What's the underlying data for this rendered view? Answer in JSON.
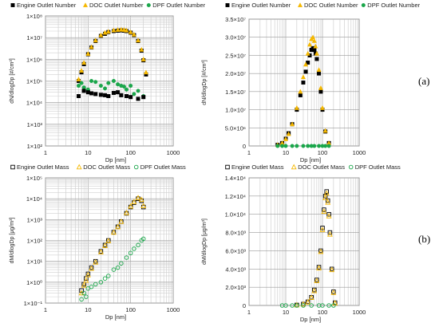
{
  "panel_labels": [
    "(a)",
    "(b)"
  ],
  "colors": {
    "engine": "#000000",
    "doc": "#f5b800",
    "dpf": "#1aa64a"
  },
  "chart_data": [
    {
      "type": "scatter",
      "xscale": "log",
      "yscale": "log",
      "xlabel": "Dp [nm]",
      "ylabel": "dN/dlogDp [#/cm³]",
      "xlim": [
        1,
        1000
      ],
      "ylim": [
        100,
        100000000
      ],
      "xticks": [
        "1",
        "10",
        "100",
        "1000"
      ],
      "yticks": [
        "1×10²",
        "1×10³",
        "1×10⁴",
        "1×10⁵",
        "1×10⁶",
        "1×10⁷",
        "1×10⁸"
      ],
      "legend": [
        "Engine Outlet Number",
        "DOC Outlet Number",
        "DPF Outlet Number"
      ],
      "series": [
        {
          "name": "Engine Outlet Number",
          "marker": "filled-square",
          "x": [
            6,
            7,
            8,
            10,
            12,
            15,
            20,
            25,
            30,
            40,
            50,
            60,
            70,
            80,
            100,
            120,
            150,
            180,
            200,
            230
          ],
          "y": [
            100000,
            250000,
            600000,
            1700000,
            3500000,
            7000000,
            12000000,
            15000000,
            18000000,
            20000000,
            21000000,
            21500000,
            21000000,
            20000000,
            17000000,
            13000000,
            7000000,
            2500000,
            900000,
            200000
          ]
        },
        {
          "name": "DOC Outlet Number",
          "marker": "filled-triangle",
          "x": [
            6,
            7,
            8,
            10,
            12,
            15,
            20,
            25,
            30,
            40,
            50,
            60,
            70,
            80,
            100,
            120,
            150,
            180,
            200,
            230
          ],
          "y": [
            120000,
            300000,
            700000,
            1800000,
            3700000,
            7500000,
            13000000,
            17000000,
            19000000,
            22000000,
            23000000,
            23500000,
            23000000,
            21500000,
            18000000,
            14000000,
            7500000,
            2800000,
            1000000,
            250000
          ]
        },
        {
          "name": "DPF Outlet Number",
          "marker": "filled-circle",
          "x": [
            6,
            7,
            8,
            10,
            12,
            15,
            20,
            25,
            30,
            40,
            50,
            60,
            70,
            80,
            100,
            120,
            150,
            200
          ],
          "y": [
            60000,
            80000,
            50000,
            40000,
            100000,
            90000,
            60000,
            45000,
            80000,
            100000,
            70000,
            60000,
            55000,
            40000,
            60000,
            25000,
            35000,
            20000
          ]
        },
        {
          "name": "Engine Outlet Number (tail)",
          "marker": "filled-square",
          "x": [
            6,
            8,
            10,
            12,
            15,
            20,
            25,
            30,
            40,
            50,
            60,
            80,
            100,
            150,
            200
          ],
          "y": [
            20000,
            35000,
            30000,
            27000,
            25000,
            23000,
            22000,
            20000,
            28000,
            30000,
            22000,
            20000,
            18000,
            15000,
            18000
          ]
        }
      ]
    },
    {
      "type": "scatter",
      "xscale": "log",
      "yscale": "linear",
      "xlabel": "Dp [nm]",
      "ylabel": "dN/dlogDp [#/cm³]",
      "xlim": [
        1,
        1000
      ],
      "ylim": [
        0,
        35000000
      ],
      "xticks": [
        "1",
        "10",
        "100",
        "1000"
      ],
      "yticks": [
        "0",
        "5.0×10⁶",
        "1.0×10⁷",
        "1.5×10⁷",
        "2.0×10⁷",
        "2.5×10⁷",
        "3.0×10⁷",
        "3.5×10⁷"
      ],
      "legend": [
        "Engine Outlet Number",
        "DOC Outlet Number",
        "DPF Outlet Number"
      ],
      "series": [
        {
          "name": "Engine Outlet Number",
          "marker": "filled-square",
          "x": [
            6,
            8,
            10,
            12,
            15,
            20,
            25,
            30,
            35,
            40,
            45,
            50,
            55,
            60,
            65,
            70,
            80,
            90,
            100,
            120,
            150
          ],
          "y": [
            300000,
            800000,
            2000000,
            3500000,
            6000000,
            10000000,
            14000000,
            17500000,
            20500000,
            23000000,
            25000000,
            26500000,
            27000000,
            26500000,
            25500000,
            24000000,
            20000000,
            15000000,
            10000000,
            4000000,
            800000
          ]
        },
        {
          "name": "DOC Outlet Number",
          "marker": "filled-triangle",
          "x": [
            6,
            8,
            10,
            12,
            15,
            20,
            25,
            30,
            35,
            40,
            45,
            50,
            55,
            60,
            65,
            70,
            80,
            90,
            100,
            120,
            150
          ],
          "y": [
            300000,
            800000,
            1900000,
            3300000,
            6000000,
            10500000,
            15000000,
            19000000,
            22500000,
            25500000,
            28000000,
            29500000,
            30000000,
            29000000,
            27500000,
            25500000,
            21000000,
            16000000,
            10500000,
            4200000,
            800000
          ]
        },
        {
          "name": "DPF Outlet Number",
          "marker": "filled-circle",
          "x": [
            6,
            8,
            10,
            15,
            20,
            30,
            40,
            50,
            60,
            80,
            100,
            120,
            150
          ],
          "y": [
            0,
            0,
            0,
            0,
            0,
            0,
            0,
            0,
            0,
            0,
            0,
            0,
            0
          ]
        }
      ]
    },
    {
      "type": "scatter",
      "xscale": "log",
      "yscale": "log",
      "xlabel": "Dp [nm]",
      "ylabel": "dM/dlogDp [μg/m³]",
      "xlim": [
        1,
        1000
      ],
      "ylim": [
        0.1,
        100000
      ],
      "xticks": [
        "1",
        "10",
        "100",
        "1000"
      ],
      "yticks": [
        "1×10⁻¹",
        "1×10⁰",
        "1×10¹",
        "1×10²",
        "1×10³",
        "1×10⁴",
        "1×10⁵"
      ],
      "legend": [
        "Engine Outlet Mass",
        "DOC Outlet Mass",
        "DPF Outlet Mass"
      ],
      "series": [
        {
          "name": "Engine Outlet Mass",
          "marker": "open-square",
          "x": [
            7,
            8,
            9,
            10,
            12,
            15,
            20,
            25,
            30,
            40,
            50,
            60,
            80,
            100,
            120,
            150,
            180,
            200
          ],
          "y": [
            0.4,
            0.8,
            1.5,
            2.5,
            5,
            10,
            30,
            60,
            100,
            250,
            450,
            800,
            2000,
            4000,
            6500,
            10000,
            8000,
            4000
          ]
        },
        {
          "name": "DOC Outlet Mass",
          "marker": "open-triangle",
          "x": [
            7,
            8,
            9,
            10,
            12,
            15,
            20,
            25,
            30,
            40,
            50,
            60,
            80,
            100,
            120,
            150,
            180,
            200
          ],
          "y": [
            0.3,
            0.7,
            1.2,
            2.2,
            4.5,
            9,
            28,
            55,
            95,
            240,
            440,
            800,
            2100,
            4300,
            7000,
            11000,
            9000,
            4500
          ]
        },
        {
          "name": "DPF Outlet Mass",
          "marker": "open-circle",
          "x": [
            7,
            8,
            9,
            10,
            12,
            15,
            20,
            25,
            30,
            40,
            50,
            60,
            80,
            100,
            120,
            150,
            180,
            200
          ],
          "y": [
            0.15,
            0.3,
            0.2,
            0.5,
            0.6,
            0.8,
            1,
            1.5,
            2,
            4,
            5,
            8,
            15,
            25,
            40,
            60,
            100,
            120
          ]
        }
      ]
    },
    {
      "type": "scatter",
      "xscale": "log",
      "yscale": "linear",
      "xlabel": "Dp [nm]",
      "ylabel": "dM/dlogDp [μg/m³]",
      "xlim": [
        1,
        1000
      ],
      "ylim": [
        0,
        14000
      ],
      "xticks": [
        "1",
        "10",
        "100",
        "1000"
      ],
      "yticks": [
        "0",
        "2.0×10³",
        "4.0×10³",
        "6.0×10³",
        "8.0×10³",
        "1.0×10⁴",
        "1.2×10⁴",
        "1.4×10⁴"
      ],
      "legend": [
        "Engine Outlet Mass",
        "DOC Outlet Mass",
        "DPF Outlet Mass"
      ],
      "series": [
        {
          "name": "Engine Outlet Mass",
          "marker": "open-square",
          "x": [
            20,
            30,
            40,
            50,
            60,
            70,
            80,
            90,
            100,
            110,
            120,
            130,
            140,
            150,
            160,
            180,
            200,
            220
          ],
          "y": [
            50,
            150,
            400,
            900,
            1700,
            2800,
            4200,
            6000,
            8500,
            10500,
            12000,
            12500,
            11500,
            10000,
            8000,
            4000,
            1500,
            300
          ]
        },
        {
          "name": "DOC Outlet Mass",
          "marker": "open-triangle",
          "x": [
            20,
            30,
            40,
            50,
            60,
            70,
            80,
            90,
            100,
            110,
            120,
            130,
            140,
            150,
            160,
            180,
            200,
            220
          ],
          "y": [
            40,
            130,
            350,
            850,
            1600,
            2700,
            4100,
            5900,
            8300,
            10300,
            11800,
            12300,
            11300,
            9800,
            7800,
            3900,
            1400,
            250
          ]
        },
        {
          "name": "DPF Outlet Mass",
          "marker": "open-circle",
          "x": [
            8,
            10,
            15,
            20,
            30,
            50,
            80,
            100,
            150,
            200
          ],
          "y": [
            0,
            0,
            0,
            0,
            0,
            0,
            0,
            0,
            0,
            0
          ]
        }
      ]
    }
  ]
}
